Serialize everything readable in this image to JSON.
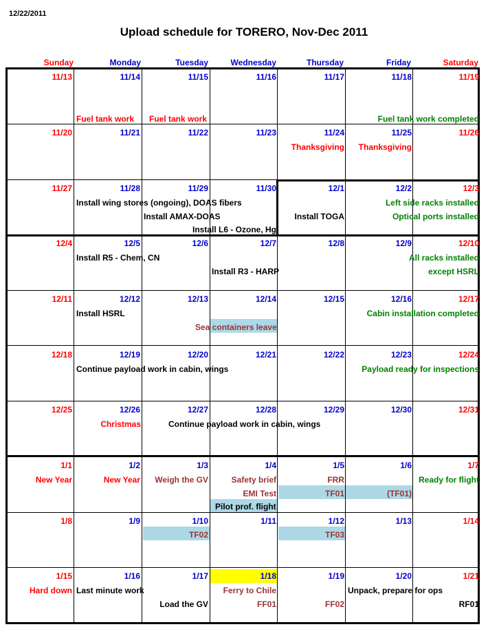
{
  "print_date": "12/22/2011",
  "title": "Upload schedule for TORERO, Nov-Dec 2011",
  "day_names": [
    "Sunday",
    "Monday",
    "Tuesday",
    "Wednesday",
    "Thursday",
    "Friday",
    "Saturday"
  ],
  "weeks": [
    {
      "dates": [
        "11/13",
        "11/14",
        "11/15",
        "11/16",
        "11/17",
        "11/18",
        "11/19"
      ]
    },
    {
      "dates": [
        "11/20",
        "11/21",
        "11/22",
        "11/23",
        "11/24",
        "11/25",
        "11/26"
      ]
    },
    {
      "dates": [
        "11/27",
        "11/28",
        "11/29",
        "11/30",
        "12/1",
        "12/2",
        "12/3"
      ]
    },
    {
      "dates": [
        "12/4",
        "12/5",
        "12/6",
        "12/7",
        "12/8",
        "12/9",
        "12/10"
      ]
    },
    {
      "dates": [
        "12/11",
        "12/12",
        "12/13",
        "12/14",
        "12/15",
        "12/16",
        "12/17"
      ]
    },
    {
      "dates": [
        "12/18",
        "12/19",
        "12/20",
        "12/21",
        "12/22",
        "12/23",
        "12/24"
      ]
    },
    {
      "dates": [
        "12/25",
        "12/26",
        "12/27",
        "12/28",
        "12/29",
        "12/30",
        "12/31"
      ]
    },
    {
      "dates": [
        "1/1",
        "1/2",
        "1/3",
        "1/4",
        "1/5",
        "1/6",
        "1/7"
      ]
    },
    {
      "dates": [
        "1/8",
        "1/9",
        "1/10",
        "1/11",
        "1/12",
        "1/13",
        "1/14"
      ]
    },
    {
      "dates": [
        "1/15",
        "1/16",
        "1/17",
        "1/18",
        "1/19",
        "1/20",
        "1/21"
      ]
    }
  ],
  "events": {
    "w1_mon": "Fuel tank work",
    "w1_tue": "Fuel tank work",
    "w1_sat": "Fuel tank work completed",
    "w2_thu": "Thanksgiving",
    "w2_fri": "Thanksgiving",
    "w3_wing": "Install wing stores (ongoing), DOAS fibers",
    "w3_amax": "Install AMAX-DOAS",
    "w3_l6": "Install L6 - Ozone, Hg",
    "w3_toga": "Install TOGA",
    "w3_left": "Left side racks installed",
    "w3_optical": "Optical ports installed",
    "w4_r5": "Install R5 - Chem, CN",
    "w4_r3": "Install R3 - HARP",
    "w4_all": "All racks installed",
    "w4_except": "except HSRL",
    "w5_hsrl": "Install HSRL",
    "w5_sea": "Sea containers leave",
    "w5_cabin": "Cabin installation completed",
    "w6_continue": "Continue payload work in cabin, wings",
    "w6_ready": "Payload ready for inspections",
    "w7_christmas": "Christmas",
    "w7_continue": "Continue payload work in cabin, wings",
    "w8_newyear1": "New Year",
    "w8_newyear2": "New Year",
    "w8_weigh": "Weigh the GV",
    "w8_safety": "Safety brief",
    "w8_emi": "EMI Test",
    "w8_pilot": "Pilot prof. flight",
    "w8_frr": "FRR",
    "w8_tf01": "TF01",
    "w8_tf01p": "(TF01)",
    "w8_ready": "Ready for flight",
    "w9_tf02": "TF02",
    "w9_tf03": "TF03",
    "w10_hard": "Hard down",
    "w10_last": "Last minute work",
    "w10_load": "Load the GV",
    "w10_ferry": "Ferry to Chile",
    "w10_ff01": "FF01",
    "w10_ff02": "FF02",
    "w10_unpack": "Unpack, prepare for ops",
    "w10_rf01": "RF01"
  },
  "colors": {
    "weekend_red": "#ff0000",
    "weekday_blue": "#0000cc",
    "milestone_green": "#008000",
    "flight_brown": "#993333",
    "shade_blue": "#add8e6",
    "highlight_yellow": "#ffff00"
  }
}
